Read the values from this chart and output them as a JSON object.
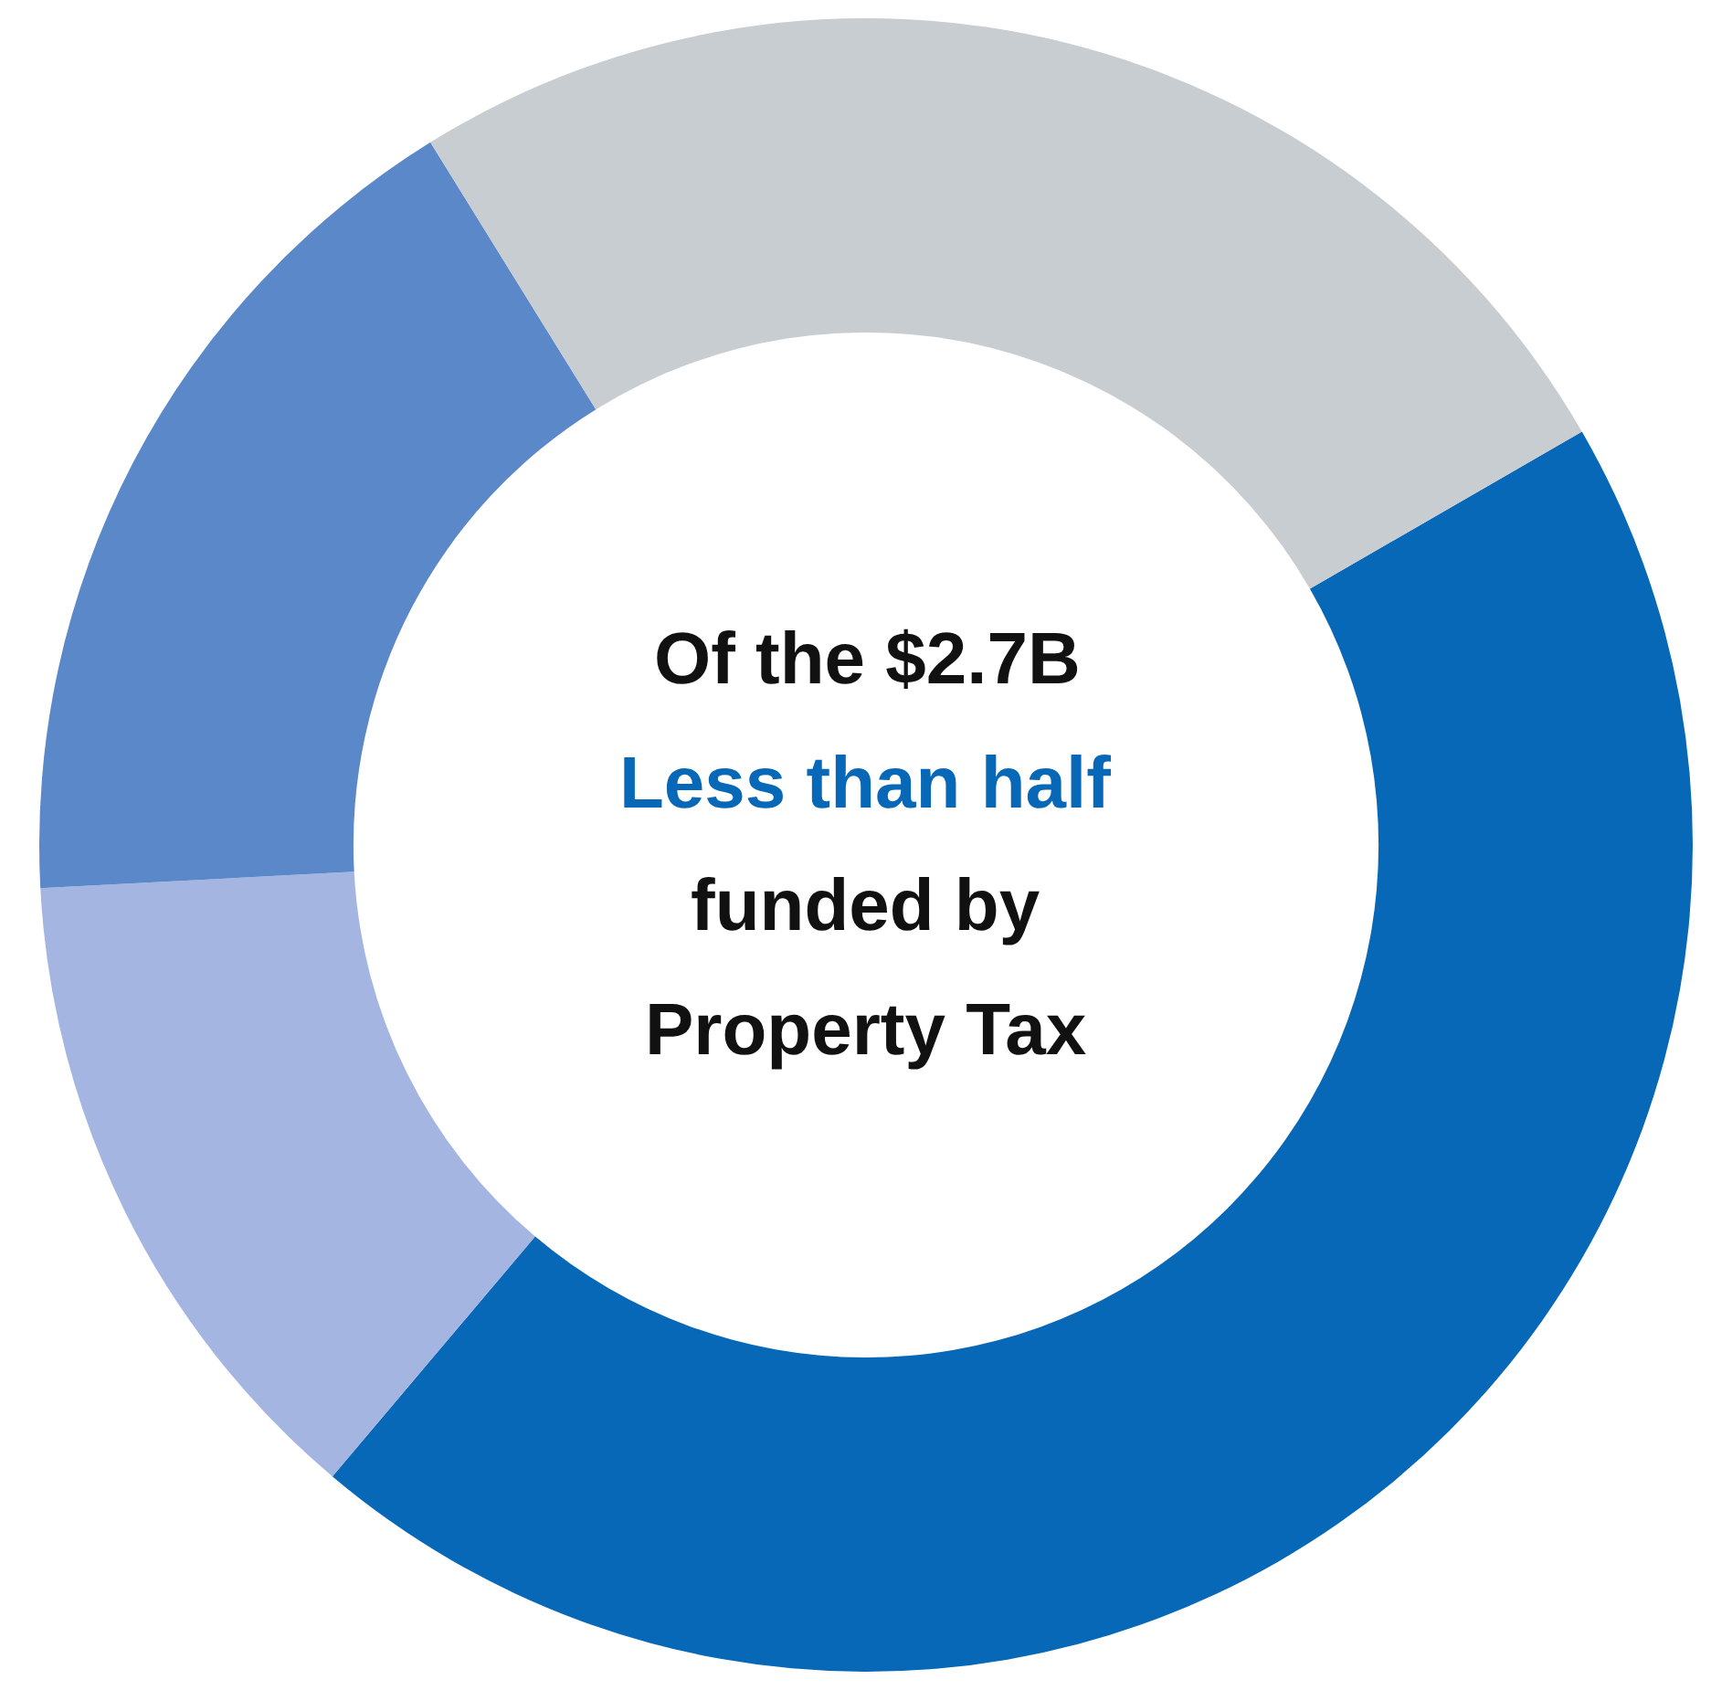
{
  "chart_data": {
    "type": "donut",
    "categories": [
      null,
      null,
      null,
      null
    ],
    "values": [
      44.5,
      13,
      17,
      25.5
    ],
    "colors": [
      "#0868b8",
      "#a3b5e0",
      "#5b88c8",
      "#c8cdd2"
    ],
    "annotations": [
      "Of the $2.7B",
      "Less than half",
      "funded by",
      "Property Tax"
    ],
    "legend": false
  }
}
